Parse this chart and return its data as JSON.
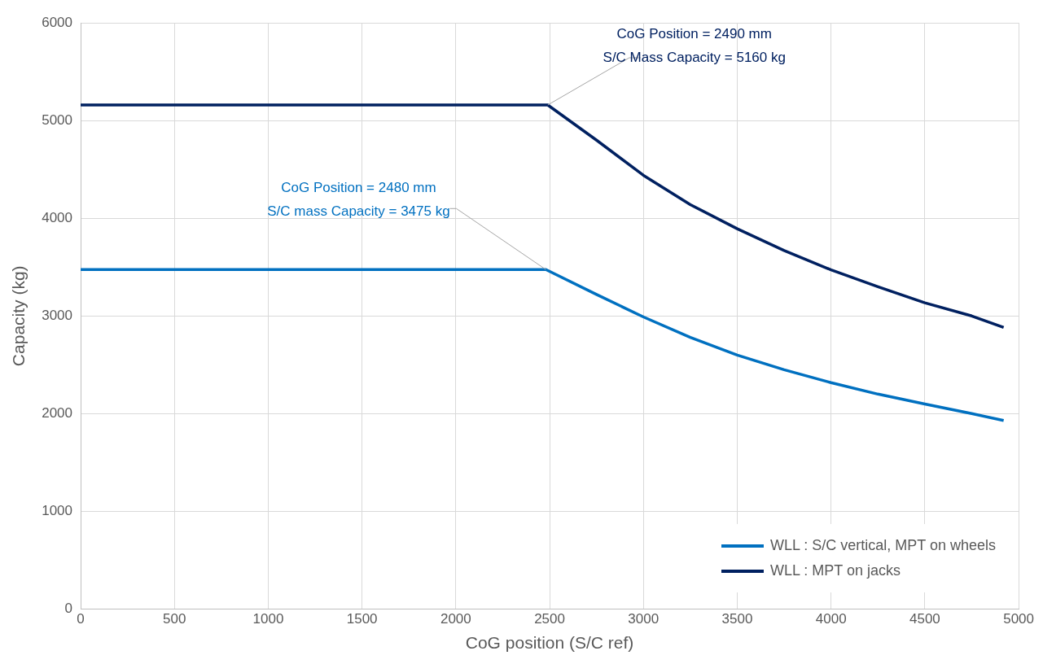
{
  "chart_data": {
    "type": "line",
    "xlabel": "CoG position (S/C ref)",
    "ylabel": "Capacity (kg)",
    "xlim": [
      0,
      5000
    ],
    "xticks": [
      0,
      500,
      1000,
      1500,
      2000,
      2500,
      3000,
      3500,
      4000,
      4500,
      5000
    ],
    "ylim": [
      0,
      6000
    ],
    "yticks": [
      0,
      1000,
      2000,
      3000,
      4000,
      5000,
      6000
    ],
    "grid": true,
    "legend": "bottom right",
    "marker": "none",
    "line_style": "solid",
    "series": [
      {
        "name": "WLL : S/C vertical, MPT on wheels",
        "color": "#0070c0",
        "x": [
          0,
          2480,
          2750,
          3000,
          3250,
          3500,
          3750,
          4000,
          4250,
          4500,
          4750,
          4920
        ],
        "values": [
          3475,
          3475,
          3220,
          2990,
          2780,
          2600,
          2450,
          2317,
          2200,
          2098,
          2000,
          1930
        ]
      },
      {
        "name": "WLL : MPT on jacks",
        "color": "#002060",
        "x": [
          0,
          2490,
          2750,
          3000,
          3250,
          3500,
          3750,
          4000,
          4250,
          4500,
          4750,
          4920
        ],
        "values": [
          5160,
          5160,
          4800,
          4440,
          4140,
          3893,
          3670,
          3472,
          3300,
          3135,
          3000,
          2882
        ]
      }
    ],
    "annotations": [
      {
        "text": "CoG Position = 2480 mm\nS/C mass Capacity = 3475 kg",
        "x": 2480,
        "y": 3475
      },
      {
        "text": "CoG Position = 2490 mm\nS/C Mass Capacity = 5160 kg",
        "x": 2490,
        "y": 5160
      }
    ]
  }
}
